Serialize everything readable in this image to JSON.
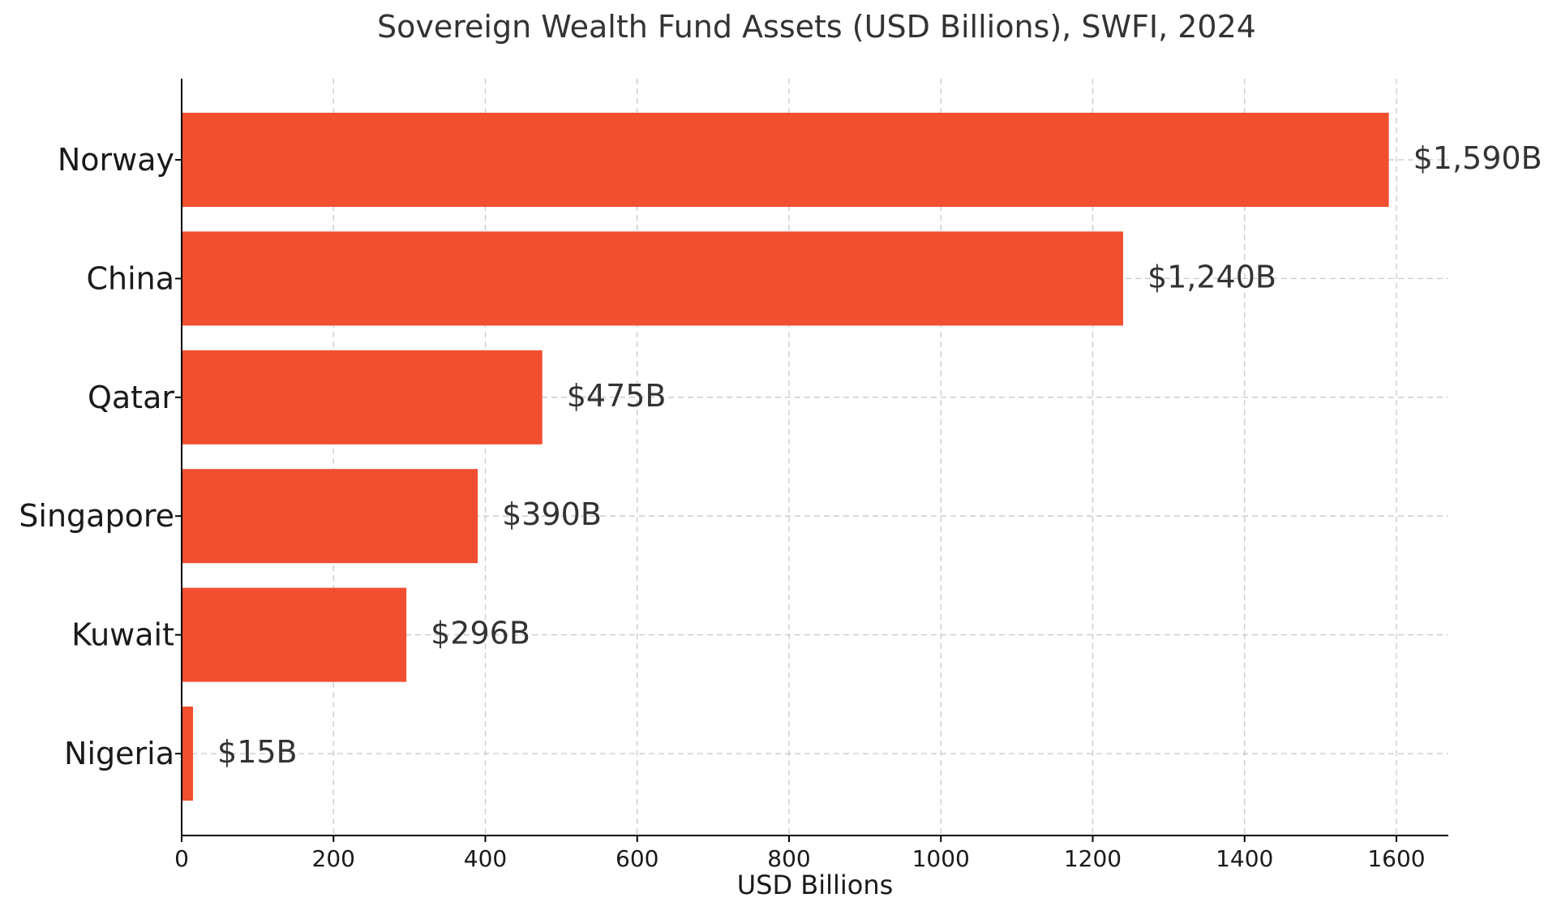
{
  "colors": {
    "bar": "#f24e30",
    "grid": "#c8c8c8",
    "text": "#333333"
  },
  "chart_data": {
    "type": "bar",
    "orientation": "horizontal",
    "title": "Sovereign Wealth Fund Assets (USD Billions), SWFI, 2024",
    "xlabel": "USD Billions",
    "ylabel": "",
    "categories": [
      "Norway",
      "China",
      "Qatar",
      "Singapore",
      "Kuwait",
      "Nigeria"
    ],
    "values": [
      1590,
      1240,
      475,
      390,
      296,
      15
    ],
    "data_labels": [
      "$1,590B",
      "$1,240B",
      "$475B",
      "$390B",
      "$296B",
      "$15B"
    ],
    "xlim": [
      0,
      1670
    ],
    "xticks": [
      0,
      200,
      400,
      600,
      800,
      1000,
      1200,
      1400,
      1600
    ],
    "xtick_labels": [
      "0",
      "200",
      "400",
      "600",
      "800",
      "1000",
      "1200",
      "1400",
      "1600"
    ],
    "grid": true,
    "legend": "none"
  }
}
